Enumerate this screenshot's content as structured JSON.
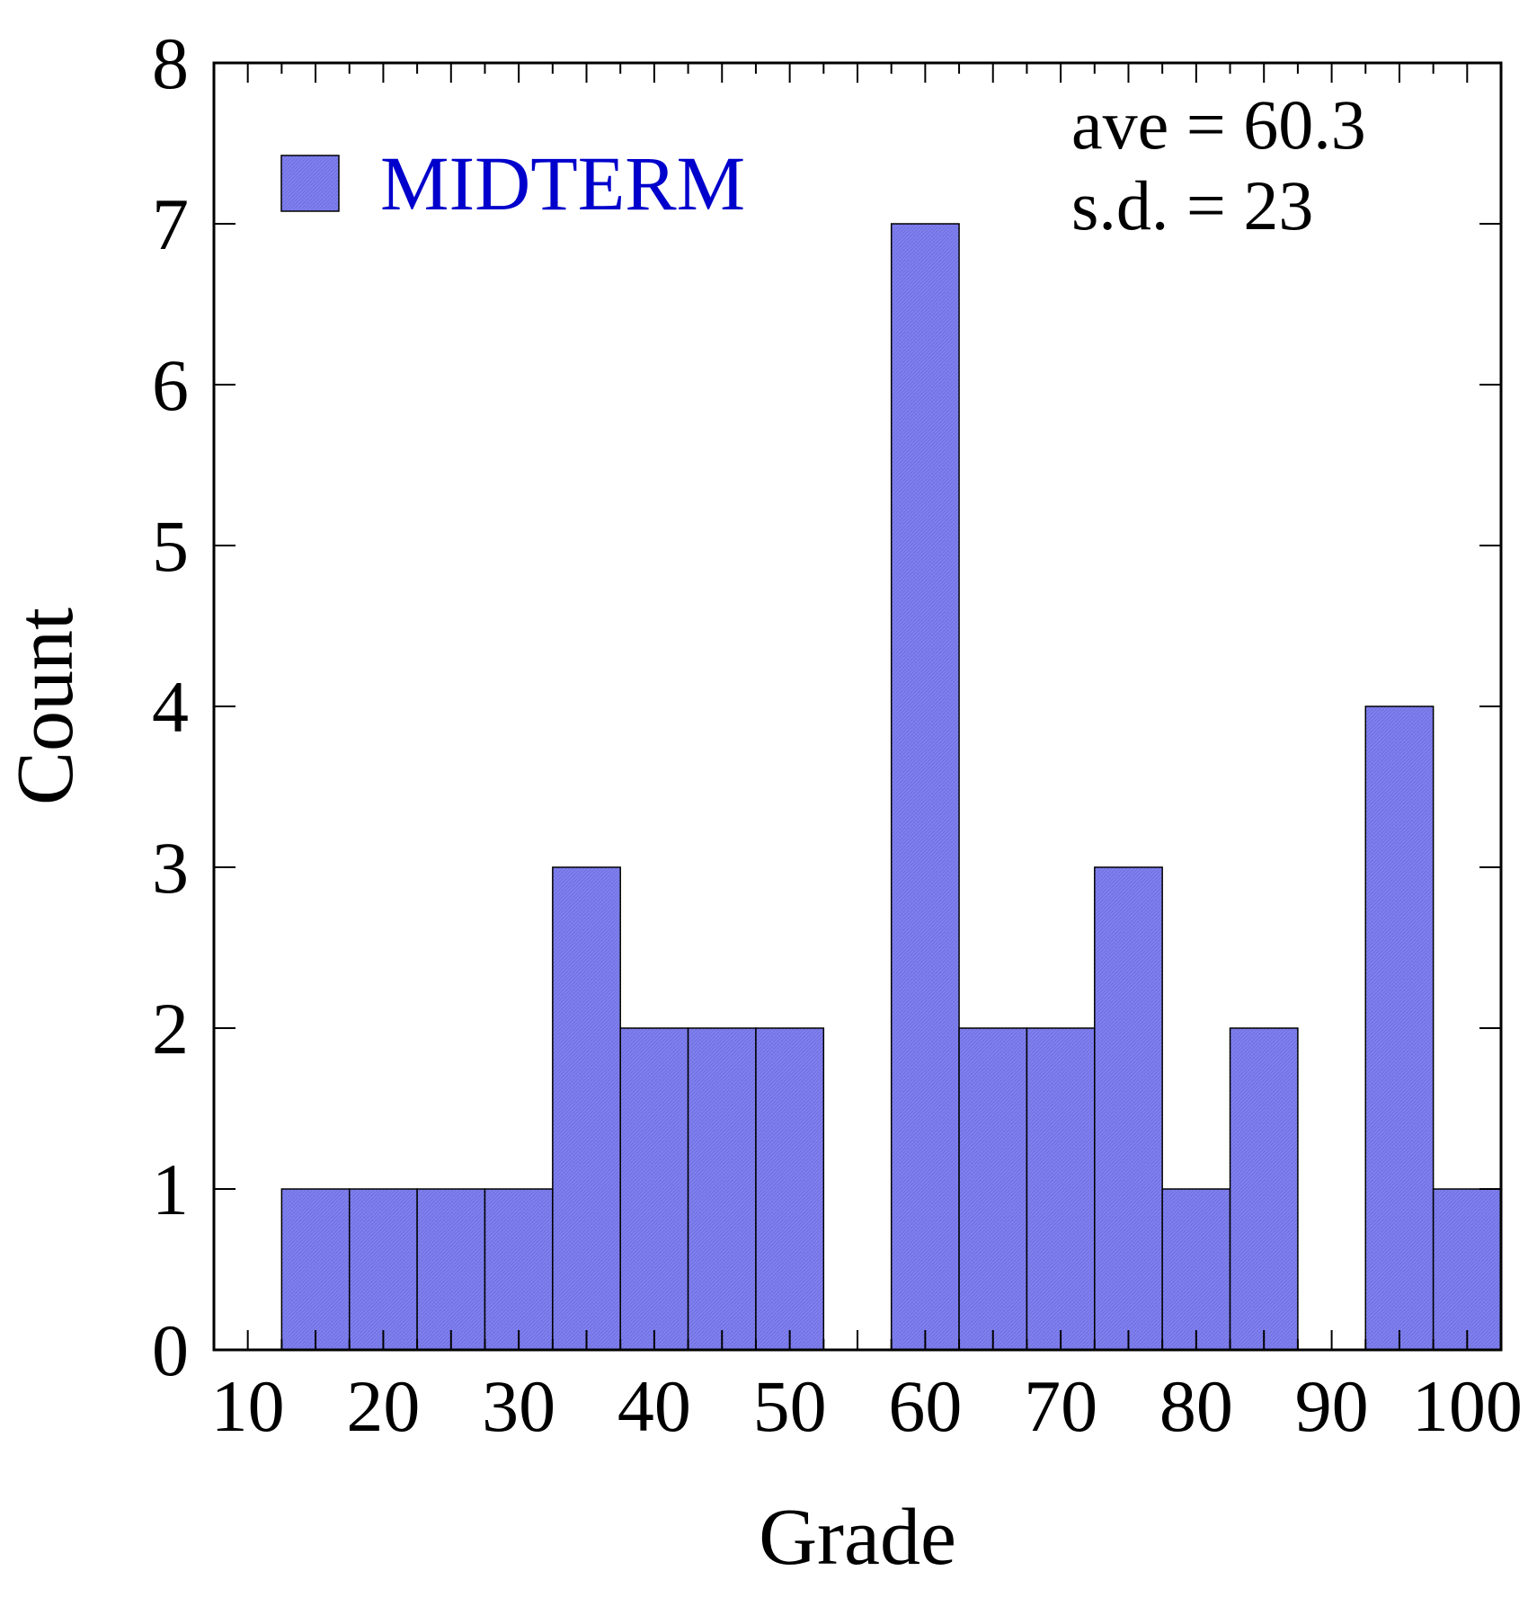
{
  "chart_data": {
    "type": "bar",
    "title": "",
    "xlabel": "Grade",
    "ylabel": "Count",
    "xlim": [
      7.5,
      102.5
    ],
    "ylim": [
      0,
      8
    ],
    "bin_width": 5,
    "x_ticks": [
      10,
      20,
      30,
      40,
      50,
      60,
      70,
      80,
      90,
      100
    ],
    "y_ticks": [
      0,
      1,
      2,
      3,
      4,
      5,
      6,
      7,
      8
    ],
    "series": [
      {
        "name": "MIDTERM",
        "color": "#8080f0",
        "x": [
          15,
          20,
          25,
          30,
          35,
          40,
          45,
          50,
          55,
          60,
          65,
          70,
          75,
          80,
          85,
          90,
          95,
          100
        ],
        "values": [
          1,
          1,
          1,
          1,
          3,
          2,
          2,
          2,
          0,
          7,
          2,
          2,
          3,
          1,
          2,
          0,
          4,
          1
        ]
      }
    ],
    "legend": {
      "position": "top-left",
      "label_color": "#0000cc"
    },
    "annotations": [
      "ave = 60.3",
      "s.d. = 23"
    ],
    "annotation_position": "top-right",
    "grid": false
  }
}
